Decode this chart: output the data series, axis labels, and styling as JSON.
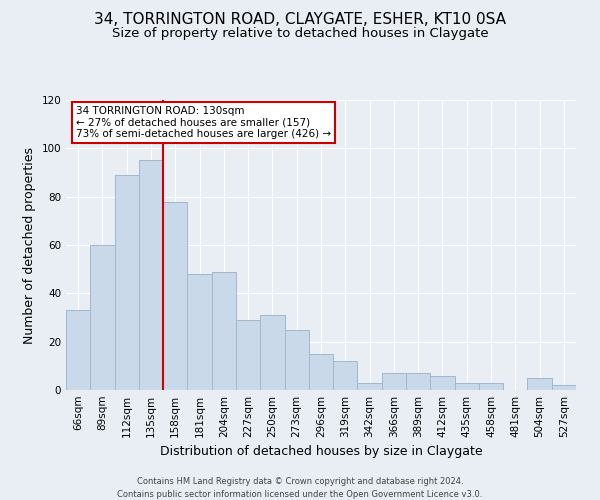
{
  "title": "34, TORRINGTON ROAD, CLAYGATE, ESHER, KT10 0SA",
  "subtitle": "Size of property relative to detached houses in Claygate",
  "xlabel": "Distribution of detached houses by size in Claygate",
  "ylabel": "Number of detached properties",
  "categories": [
    "66sqm",
    "89sqm",
    "112sqm",
    "135sqm",
    "158sqm",
    "181sqm",
    "204sqm",
    "227sqm",
    "250sqm",
    "273sqm",
    "296sqm",
    "319sqm",
    "342sqm",
    "366sqm",
    "389sqm",
    "412sqm",
    "435sqm",
    "458sqm",
    "481sqm",
    "504sqm",
    "527sqm"
  ],
  "values": [
    33,
    60,
    89,
    95,
    78,
    48,
    49,
    29,
    31,
    25,
    15,
    12,
    3,
    7,
    7,
    6,
    3,
    3,
    0,
    5,
    2
  ],
  "bar_color": "#c9d9ea",
  "bar_edge_color": "#a0b8d0",
  "vline_x_index": 3,
  "vline_color": "#cc0000",
  "annotation_title": "34 TORRINGTON ROAD: 130sqm",
  "annotation_line1": "← 27% of detached houses are smaller (157)",
  "annotation_line2": "73% of semi-detached houses are larger (426) →",
  "annotation_box_color": "#ffffff",
  "annotation_box_edge": "#cc0000",
  "ylim": [
    0,
    120
  ],
  "yticks": [
    0,
    20,
    40,
    60,
    80,
    100,
    120
  ],
  "footer1": "Contains HM Land Registry data © Crown copyright and database right 2024.",
  "footer2": "Contains public sector information licensed under the Open Government Licence v3.0.",
  "title_fontsize": 11,
  "subtitle_fontsize": 9.5,
  "axis_label_fontsize": 9,
  "tick_fontsize": 7.5,
  "background_color": "#e8eef4"
}
